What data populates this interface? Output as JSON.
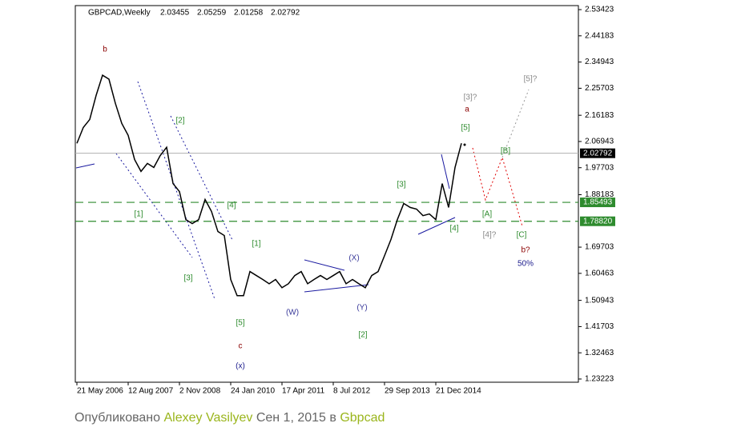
{
  "chart_data": {
    "type": "line",
    "symbol": "GBPCAD,Weekly",
    "ohlc": [
      2.03455,
      2.05259,
      2.01258,
      2.02792
    ],
    "color": "#000000",
    "categories": [
      "21 May 2006",
      null,
      null,
      null,
      null,
      null,
      null,
      null,
      "12 Aug 2007",
      null,
      null,
      null,
      null,
      null,
      null,
      null,
      "2 Nov 2008",
      null,
      null,
      null,
      null,
      null,
      null,
      null,
      "24 Jan 2010",
      null,
      null,
      null,
      null,
      null,
      null,
      null,
      "17 Apr 2011",
      null,
      null,
      null,
      null,
      null,
      null,
      null,
      "8 Jul 2012",
      null,
      null,
      null,
      null,
      null,
      null,
      null,
      "29 Sep 2013",
      null,
      null,
      null,
      null,
      null,
      null,
      null,
      "21 Dec 2014",
      null,
      null,
      null,
      null
    ],
    "values": [
      2.063,
      2.119,
      2.147,
      2.232,
      2.303,
      2.289,
      2.204,
      2.133,
      2.091,
      2.006,
      1.964,
      1.992,
      1.978,
      2.02,
      2.049,
      1.921,
      1.893,
      1.794,
      1.78,
      1.794,
      1.865,
      1.823,
      1.752,
      1.738,
      1.583,
      1.526,
      1.526,
      1.611,
      1.597,
      1.583,
      1.568,
      1.583,
      1.554,
      1.568,
      1.597,
      1.611,
      1.568,
      1.583,
      1.597,
      1.583,
      1.597,
      1.611,
      1.568,
      1.583,
      1.568,
      1.554,
      1.597,
      1.611,
      1.667,
      1.724,
      1.794,
      1.851,
      1.837,
      1.831,
      1.808,
      1.814,
      1.794,
      1.921,
      1.837,
      1.978,
      2.063
    ],
    "ylim": [
      1.2209,
      2.5484
    ],
    "yticks": [
      2.53423,
      2.44183,
      2.34943,
      2.25703,
      2.16183,
      2.06943,
      1.97703,
      1.88183,
      1.69703,
      1.60463,
      1.50943,
      1.41703,
      1.32463,
      1.23223
    ],
    "levels": [
      {
        "value": 2.02792,
        "color": "#b0b0b0",
        "dashed": false
      },
      {
        "value": 1.85493,
        "color": "#2e8b2e",
        "dashed": true
      },
      {
        "value": 1.7882,
        "label": "1.78820",
        "color": "#2e8b2e",
        "dashed": true
      }
    ],
    "annotations": [
      {
        "text": "b",
        "color": "#8b0000"
      },
      {
        "text": "[2]",
        "color": "#2e8b2e"
      },
      {
        "text": "[1]",
        "color": "#2e8b2e"
      },
      {
        "text": "[4]",
        "color": "#2e8b2e"
      },
      {
        "text": "[3]",
        "color": "#2e8b2e"
      },
      {
        "text": "[1]",
        "color": "#2e8b2e"
      },
      {
        "text": "[5]",
        "color": "#2e8b2e"
      },
      {
        "text": "c",
        "color": "#8b0000"
      },
      {
        "text": "(x)",
        "color": "#1a1a8c"
      },
      {
        "text": "(W)",
        "color": "#3b3b9b"
      },
      {
        "text": "(X)",
        "color": "#3b3b9b"
      },
      {
        "text": "(Y)",
        "color": "#3b3b9b"
      },
      {
        "text": "[2]",
        "color": "#2e8b2e"
      },
      {
        "text": "[3]",
        "color": "#2e8b2e"
      },
      {
        "text": "[3]?",
        "color": "#888888"
      },
      {
        "text": "a",
        "color": "#8b0000"
      },
      {
        "text": "[5]",
        "color": "#2e8b2e"
      },
      {
        "text": "[B]",
        "color": "#2e8b2e"
      },
      {
        "text": "[5]?",
        "color": "#888888"
      },
      {
        "text": "[A]",
        "color": "#2e8b2e"
      },
      {
        "text": "[4]",
        "color": "#2e8b2e"
      },
      {
        "text": "[4]?",
        "color": "#888888"
      },
      {
        "text": "[C]",
        "color": "#2e8b2e"
      },
      {
        "text": "b?",
        "color": "#8b0000"
      },
      {
        "text": "50%",
        "color": "#1a1a8c"
      }
    ]
  },
  "footer": {
    "prefix": "Опубликовано",
    "author": "Alexey Vasilyev",
    "date": "Сен 1, 2015 в",
    "tag": "Gbpcad"
  }
}
